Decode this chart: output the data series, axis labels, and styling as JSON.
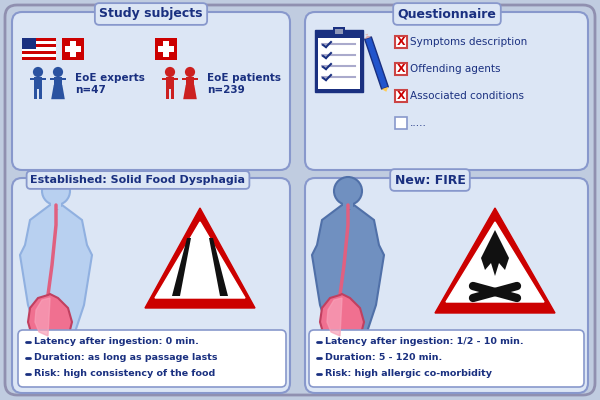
{
  "bg_outer": "#c0cce0",
  "bg_panel": "#dce6f5",
  "border_panel": "#8898cc",
  "title_color": "#1a3080",
  "red": "#cc0000",
  "white": "#ffffff",
  "blue_person": "#2a52a0",
  "red_person": "#cc2020",
  "body_light": "#b8d0f0",
  "body_dark": "#7090c0",
  "esoph_color": "#e06080",
  "stomach_color": "#e06080",
  "study_title": "Study subjects",
  "questionnaire_title": "Questionnaire",
  "dysphagia_title": "Established: Solid Food Dysphagia",
  "fire_title": "New: FIRE",
  "eoe_experts_line1": "EoE experts",
  "eoe_experts_line2": "n=47",
  "eoe_patients_line1": "EoE patients",
  "eoe_patients_line2": "n=239",
  "q_items": [
    "Symptoms description",
    "Offending agents",
    "Associated conditions",
    "....."
  ],
  "dysphagia_bullets": [
    "Latency after ingestion: 0 min.",
    "Duration: as long as passage lasts",
    "Risk: high consistency of the food"
  ],
  "fire_bullets": [
    "Latency after ingestion: 1/2 - 10 min.",
    "Duration: 5 - 120 min.",
    "Risk: high allergic co-morbidity"
  ]
}
